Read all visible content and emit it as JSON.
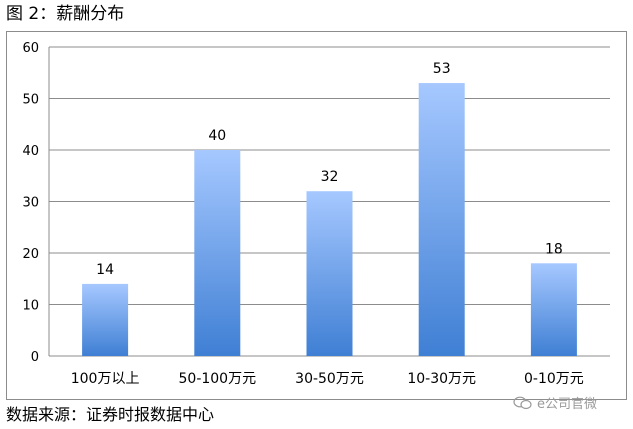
{
  "figure": {
    "title": "图 2：薪酬分布",
    "source": "数据来源：证券时报数据中心",
    "watermark": "e公司官微"
  },
  "chart_data": {
    "type": "bar",
    "categories": [
      "100万以上",
      "50-100万元",
      "30-50万元",
      "10-30万元",
      "0-10万元"
    ],
    "values": [
      14,
      40,
      32,
      53,
      18
    ],
    "title": "",
    "xlabel": "",
    "ylabel": "",
    "ylim": [
      0,
      60
    ],
    "yticks": [
      0,
      10,
      20,
      30,
      40,
      50,
      60
    ],
    "grid": true,
    "legend": "none",
    "colors": {
      "bar_top": "#a6c8ff",
      "bar_bottom": "#3f7fd4",
      "grid": "#8c8c8c"
    }
  }
}
